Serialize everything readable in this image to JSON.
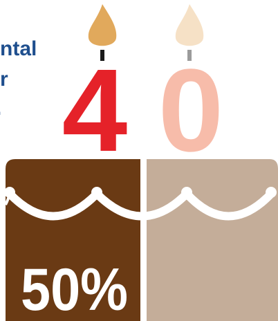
{
  "side_text": {
    "lines": [
      "ntal",
      "r",
      "."
    ]
  },
  "candles": {
    "digits": [
      "4",
      "0"
    ]
  },
  "cake": {
    "label": "50%"
  }
}
